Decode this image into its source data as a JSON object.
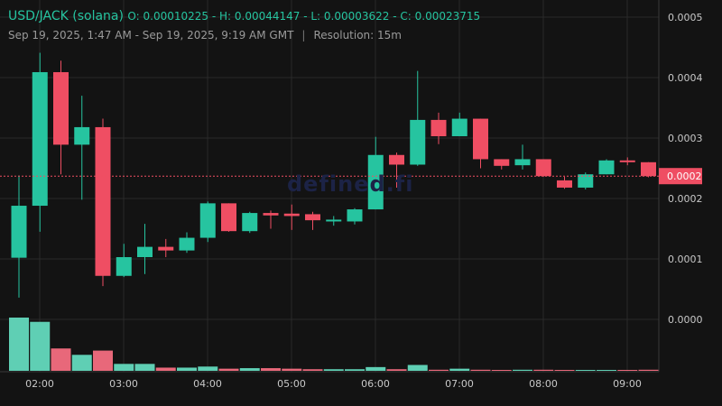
{
  "header": {
    "pair": "USD/JACK (solana)",
    "ohlc": "O: 0.00010225 - H: 0.00044147 - L: 0.00003622 - C: 0.00023715",
    "range": "Sep 19, 2025, 1:47 AM - Sep 19, 2025, 9:19 AM GMT",
    "separator": "|",
    "resolution": "Resolution: 15m"
  },
  "watermark": "defined.fi",
  "colors": {
    "background": "#131313",
    "grid": "#2a2a2a",
    "up": "#26c4a0",
    "down": "#ef4e63",
    "up_volume": "#5fcfb4",
    "down_volume": "#e8687a",
    "price_line": "#ef4e63",
    "axis_text": "#c8c8c8"
  },
  "chart_data": {
    "type": "candlestick",
    "interval": "15m",
    "x_tick_labels": [
      "02:00",
      "03:00",
      "04:00",
      "05:00",
      "06:00",
      "07:00",
      "08:00",
      "09:00"
    ],
    "y_tick_labels": [
      "0.0005",
      "0.0004",
      "0.0003",
      "0.0002",
      "0.0001",
      "0.0000"
    ],
    "ylim": [
      0.0,
      0.0005
    ],
    "current_price_label": "0.0002",
    "current_price": 0.000237,
    "grid": true,
    "candles": [
      {
        "t": "01:45",
        "o": 0.000102,
        "h": 0.000238,
        "l": 3.6e-05,
        "c": 0.000188
      },
      {
        "t": "02:00",
        "o": 0.000188,
        "h": 0.000441,
        "l": 0.000145,
        "c": 0.000409
      },
      {
        "t": "02:15",
        "o": 0.000409,
        "h": 0.000428,
        "l": 0.00024,
        "c": 0.000289
      },
      {
        "t": "02:30",
        "o": 0.000289,
        "h": 0.00037,
        "l": 0.000198,
        "c": 0.000318
      },
      {
        "t": "02:45",
        "o": 0.000318,
        "h": 0.000332,
        "l": 5.5e-05,
        "c": 7.2e-05
      },
      {
        "t": "03:00",
        "o": 7.2e-05,
        "h": 0.000125,
        "l": 7e-05,
        "c": 0.000103
      },
      {
        "t": "03:15",
        "o": 0.000103,
        "h": 0.000158,
        "l": 7.5e-05,
        "c": 0.00012
      },
      {
        "t": "03:30",
        "o": 0.00012,
        "h": 0.000133,
        "l": 0.000103,
        "c": 0.000114
      },
      {
        "t": "03:45",
        "o": 0.000114,
        "h": 0.000144,
        "l": 0.00011,
        "c": 0.000135
      },
      {
        "t": "04:00",
        "o": 0.000135,
        "h": 0.000195,
        "l": 0.000128,
        "c": 0.000192
      },
      {
        "t": "04:15",
        "o": 0.000192,
        "h": 0.000192,
        "l": 0.000145,
        "c": 0.000146
      },
      {
        "t": "04:30",
        "o": 0.000146,
        "h": 0.000178,
        "l": 0.000143,
        "c": 0.000176
      },
      {
        "t": "04:45",
        "o": 0.000176,
        "h": 0.00018,
        "l": 0.00015,
        "c": 0.000172
      },
      {
        "t": "05:00",
        "o": 0.000175,
        "h": 0.00019,
        "l": 0.000148,
        "c": 0.000171
      },
      {
        "t": "05:15",
        "o": 0.000174,
        "h": 0.000178,
        "l": 0.000148,
        "c": 0.000164
      },
      {
        "t": "05:30",
        "o": 0.000162,
        "h": 0.000171,
        "l": 0.000155,
        "c": 0.000165
      },
      {
        "t": "05:45",
        "o": 0.000162,
        "h": 0.000184,
        "l": 0.000157,
        "c": 0.000182
      },
      {
        "t": "06:00",
        "o": 0.000182,
        "h": 0.000302,
        "l": 0.000182,
        "c": 0.000272
      },
      {
        "t": "06:15",
        "o": 0.000272,
        "h": 0.000276,
        "l": 0.000218,
        "c": 0.000256
      },
      {
        "t": "06:30",
        "o": 0.000256,
        "h": 0.000411,
        "l": 0.000254,
        "c": 0.00033
      },
      {
        "t": "06:45",
        "o": 0.00033,
        "h": 0.000342,
        "l": 0.00029,
        "c": 0.000303
      },
      {
        "t": "07:00",
        "o": 0.000303,
        "h": 0.000342,
        "l": 0.000303,
        "c": 0.000332
      },
      {
        "t": "07:15",
        "o": 0.000332,
        "h": 0.000332,
        "l": 0.00025,
        "c": 0.000265
      },
      {
        "t": "07:30",
        "o": 0.000265,
        "h": 0.000265,
        "l": 0.000248,
        "c": 0.000254
      },
      {
        "t": "07:45",
        "o": 0.000255,
        "h": 0.000289,
        "l": 0.000248,
        "c": 0.000265
      },
      {
        "t": "08:00",
        "o": 0.000265,
        "h": 0.000265,
        "l": 0.000236,
        "c": 0.000237
      },
      {
        "t": "08:15",
        "o": 0.00023,
        "h": 0.000236,
        "l": 0.000216,
        "c": 0.000218
      },
      {
        "t": "08:30",
        "o": 0.000218,
        "h": 0.000243,
        "l": 0.000215,
        "c": 0.00024
      },
      {
        "t": "08:45",
        "o": 0.00024,
        "h": 0.000265,
        "l": 0.00024,
        "c": 0.000263
      },
      {
        "t": "09:00",
        "o": 0.000263,
        "h": 0.000268,
        "l": 0.000255,
        "c": 0.00026
      },
      {
        "t": "09:15",
        "o": 0.00026,
        "h": 0.00026,
        "l": 0.000235,
        "c": 0.000237
      }
    ],
    "volume_relative": [
      1.0,
      0.92,
      0.42,
      0.3,
      0.38,
      0.13,
      0.13,
      0.06,
      0.06,
      0.08,
      0.04,
      0.05,
      0.05,
      0.04,
      0.03,
      0.03,
      0.03,
      0.07,
      0.03,
      0.11,
      0.02,
      0.04,
      0.02,
      0.01,
      0.02,
      0.02,
      0.01,
      0.01,
      0.01,
      0.01,
      0.02
    ]
  }
}
